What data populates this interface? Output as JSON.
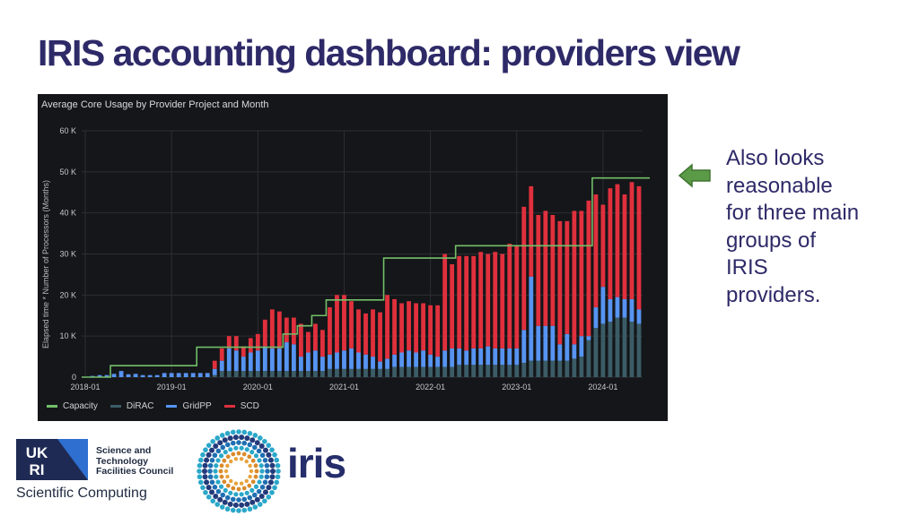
{
  "slide": {
    "title": "IRIS accounting dashboard: providers view",
    "note_lines": [
      "Also looks",
      "reasonable",
      "for three main",
      "groups of",
      "IRIS",
      "providers."
    ],
    "arrow_color": "#5b9a47"
  },
  "branding": {
    "ukri_text": "UKRI",
    "stfc_lines": [
      "Science and",
      "Technology",
      "Facilities Council"
    ],
    "sci_computing": "Scientific Computing",
    "iris_text": "iris"
  },
  "chart_data": {
    "type": "bar",
    "stacked": true,
    "title": "Average Core Usage by Provider Project and Month",
    "xlabel": "",
    "ylabel": "Elapsed time * Number of Processors (Months)",
    "ylim": [
      0,
      60000
    ],
    "yticks": [
      0,
      10000,
      20000,
      30000,
      40000,
      50000,
      60000
    ],
    "ytick_labels": [
      "0",
      "10 K",
      "20 K",
      "30 K",
      "40 K",
      "50 K",
      "60 K"
    ],
    "x_start": "2018-01",
    "xticks": [
      {
        "label": "2018-01",
        "index": 0
      },
      {
        "label": "2019-01",
        "index": 12
      },
      {
        "label": "2020-01",
        "index": 24
      },
      {
        "label": "2021-01",
        "index": 36
      },
      {
        "label": "2022-01",
        "index": 48
      },
      {
        "label": "2023-01",
        "index": 60
      },
      {
        "label": "2024-01",
        "index": 72
      }
    ],
    "legend": [
      {
        "name": "Capacity",
        "color": "#73bf69"
      },
      {
        "name": "DiRAC",
        "color": "#3b5c66"
      },
      {
        "name": "GridPP",
        "color": "#5794f2"
      },
      {
        "name": "SCD",
        "color": "#e0303d"
      }
    ],
    "series": [
      {
        "name": "DiRAC",
        "color": "#3b5c66",
        "values": [
          0,
          0,
          0,
          0,
          0,
          0,
          0,
          0,
          0,
          0,
          0,
          0,
          0,
          0,
          0,
          0,
          0,
          0,
          500,
          1500,
          1500,
          1500,
          1500,
          1500,
          1500,
          1500,
          1500,
          1500,
          1500,
          1500,
          1500,
          1500,
          1500,
          1500,
          2000,
          2000,
          2000,
          2000,
          2000,
          2000,
          2000,
          2000,
          2000,
          2500,
          2500,
          2500,
          2500,
          2500,
          2500,
          2500,
          2500,
          2500,
          3000,
          3000,
          3000,
          3000,
          3000,
          3000,
          3000,
          3000,
          3000,
          3500,
          4000,
          4000,
          4000,
          4000,
          4000,
          4000,
          4500,
          5000,
          9000,
          12000,
          13000,
          13500,
          14500,
          14500,
          13500,
          13000
        ]
      },
      {
        "name": "GridPP",
        "color": "#5794f2",
        "values": [
          0,
          300,
          500,
          500,
          800,
          1500,
          700,
          800,
          500,
          500,
          500,
          1000,
          1000,
          1000,
          1000,
          1000,
          1000,
          1000,
          1500,
          2500,
          5500,
          5000,
          3500,
          4500,
          5000,
          6000,
          5500,
          5500,
          7000,
          6500,
          3500,
          4500,
          5000,
          3500,
          3500,
          4000,
          4500,
          5000,
          4000,
          3500,
          3000,
          1800,
          2500,
          3000,
          3500,
          4000,
          3500,
          4000,
          3000,
          2500,
          4000,
          4500,
          4000,
          3500,
          4000,
          4000,
          4500,
          4000,
          4000,
          4000,
          4000,
          8000,
          20500,
          8500,
          8500,
          8500,
          4000,
          6500,
          3500,
          5000,
          1000,
          5000,
          9000,
          5500,
          5000,
          4500,
          5500,
          3500
        ]
      },
      {
        "name": "SCD",
        "color": "#e0303d",
        "values": [
          0,
          0,
          0,
          0,
          0,
          0,
          0,
          0,
          0,
          0,
          0,
          0,
          0,
          0,
          0,
          0,
          0,
          0,
          2000,
          3000,
          3000,
          3500,
          2500,
          3500,
          4000,
          6500,
          9500,
          9000,
          6000,
          6500,
          8000,
          5000,
          6500,
          6500,
          11500,
          14000,
          13500,
          11500,
          10500,
          10000,
          11500,
          12000,
          15500,
          13500,
          12000,
          12000,
          12000,
          11500,
          12000,
          12500,
          23500,
          20500,
          22500,
          23000,
          22500,
          23500,
          22500,
          23500,
          23000,
          25500,
          25000,
          30000,
          22000,
          27000,
          28000,
          27000,
          30000,
          27500,
          32500,
          30500,
          33000,
          27500,
          20000,
          27000,
          27500,
          25500,
          28500,
          30000
        ]
      }
    ],
    "capacity": [
      0,
      0,
      0,
      0,
      2800,
      2800,
      2800,
      2800,
      2800,
      2800,
      2800,
      2800,
      2800,
      2800,
      2800,
      2800,
      7300,
      7300,
      7300,
      7300,
      7300,
      7300,
      7300,
      7300,
      7300,
      7300,
      7300,
      7300,
      10500,
      10500,
      12500,
      12500,
      15000,
      15000,
      18800,
      18800,
      18800,
      18800,
      18800,
      18800,
      18800,
      18800,
      29000,
      29000,
      29000,
      29000,
      29000,
      29000,
      29000,
      29000,
      29000,
      29000,
      32000,
      32000,
      32000,
      32000,
      32000,
      32000,
      32000,
      32000,
      32000,
      32000,
      32000,
      32000,
      32000,
      32000,
      32000,
      32000,
      32000,
      32000,
      32000,
      48500,
      48500,
      48500,
      48500,
      48500,
      48500,
      48500,
      48500
    ]
  }
}
